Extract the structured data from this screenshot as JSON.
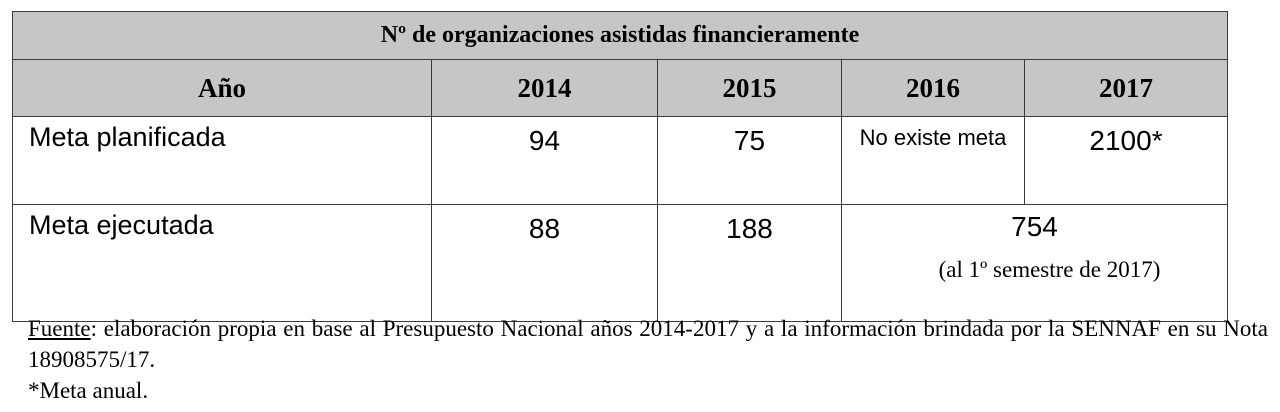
{
  "table": {
    "title": "Nº de organizaciones asistidas financieramente",
    "headers": [
      "Año",
      "2014",
      "2015",
      "2016",
      "2017"
    ],
    "rows": [
      {
        "label": "Meta planificada",
        "values": [
          "94",
          "75",
          "No existe meta",
          "2100*"
        ]
      },
      {
        "label": "Meta ejecutada",
        "values": [
          "88",
          "188"
        ],
        "merged_value": "754",
        "merged_note": "(al 1º semestre de 2017)"
      }
    ]
  },
  "footer": {
    "source_label": "Fuente",
    "source_text": ": elaboración propia en base al Presupuesto Nacional años 2014-2017 y a la información brindada por la SENNAF en su Nota 18908575/17.",
    "note": "*Meta anual."
  }
}
